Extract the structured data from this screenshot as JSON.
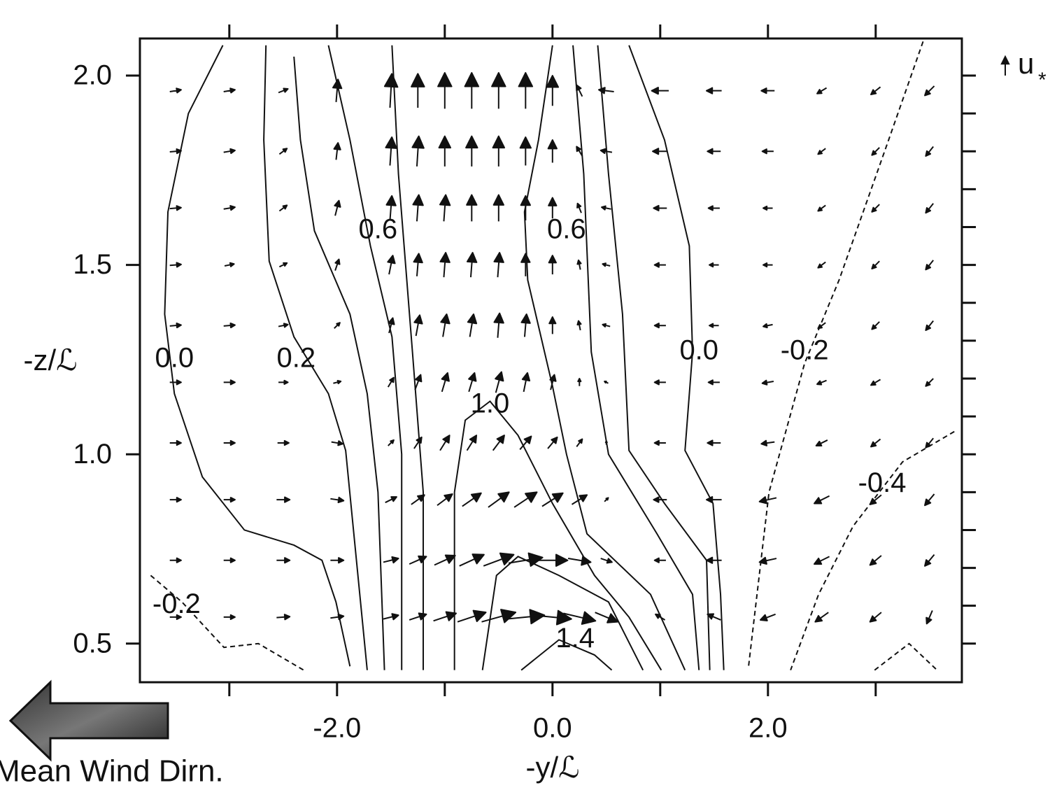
{
  "chart_data": {
    "type": "contour",
    "x_label": "-y/ℒ",
    "y_label": "-z/ℒ",
    "annotation": "Mean Wind Dirn.",
    "xlim": [
      -3.83,
      3.8
    ],
    "ylim": [
      0.398,
      2.098
    ],
    "xticks": [
      {
        "value": -2,
        "label": "-2.0"
      },
      {
        "value": 0,
        "label": "0.0"
      },
      {
        "value": 2,
        "label": "2.0"
      }
    ],
    "xminor_ticks": [
      -3,
      -1,
      1,
      3
    ],
    "yticks": [
      0.5,
      {
        "value": 1,
        "label": "1.0"
      },
      1.5,
      {
        "value": 2,
        "label": "2.0"
      }
    ],
    "yminor_ticks": [
      0.6,
      0.7,
      0.8,
      0.9,
      1.1,
      1.2,
      1.3,
      1.4,
      1.6,
      1.7,
      1.8,
      1.9
    ],
    "grid": false,
    "color": "#111111",
    "contours": [
      {
        "level": -0.2,
        "label": "-0.2",
        "label_x": -3.49,
        "label_y": 0.6,
        "x": [
          -3.73,
          -3.44,
          -3.05,
          -2.73,
          -2.31
        ],
        "y": [
          0.68,
          0.61,
          0.49,
          0.5,
          0.43
        ]
      },
      {
        "level": 0,
        "label": "0.0",
        "label_x": -3.51,
        "label_y": 1.25,
        "x": [
          -3.06,
          -3.38,
          -3.57,
          -3.6,
          -3.51,
          -3.25,
          -2.86,
          -2.4,
          -2.14,
          -2.01,
          -1.88
        ],
        "y": [
          2.08,
          1.9,
          1.64,
          1.37,
          1.16,
          0.94,
          0.8,
          0.76,
          0.72,
          0.61,
          0.44
        ]
      },
      {
        "level": 0.2,
        "label": "0.2",
        "label_x": -2.38,
        "label_y": 1.25,
        "x": [
          -2.66,
          -2.68,
          -2.63,
          -2.4,
          -2.08,
          -1.92,
          -1.82,
          -1.72
        ],
        "y": [
          2.08,
          1.83,
          1.51,
          1.31,
          1.16,
          1.01,
          0.72,
          0.43
        ]
      },
      {
        "level": 0.4,
        "x": [
          -2.4,
          -2.34,
          -2.21,
          -1.88,
          -1.72,
          -1.62,
          -1.56
        ],
        "y": [
          2.05,
          1.83,
          1.59,
          1.37,
          1.16,
          0.9,
          0.43
        ]
      },
      {
        "level": 0.6,
        "label": "0.6",
        "label_x": -1.62,
        "label_y": 1.59,
        "x": [
          -2.08,
          -1.88,
          -1.69,
          -1.49,
          -1.4,
          -1.4
        ],
        "y": [
          2.08,
          1.83,
          1.55,
          1.31,
          1.0,
          0.43
        ]
      },
      {
        "level": 0.8,
        "x": [
          -1.49,
          -1.43,
          -1.3,
          -1.2,
          -1.2
        ],
        "y": [
          2.08,
          1.74,
          1.27,
          0.9,
          0.43
        ]
      },
      {
        "level": 1,
        "label": "1.0",
        "label_x": -0.58,
        "label_y": 1.13,
        "x": [
          -0.91,
          -0.91,
          -0.81,
          -0.58,
          -0.32,
          0,
          0.39,
          0.71,
          1.01
        ],
        "y": [
          0.43,
          0.9,
          1.09,
          1.14,
          1.05,
          0.87,
          0.68,
          0.57,
          0.43
        ]
      },
      {
        "level": 1.2,
        "x": [
          -0.65,
          -0.52,
          -0.32,
          0.06,
          0.52,
          0.84
        ],
        "y": [
          0.43,
          0.68,
          0.73,
          0.68,
          0.61,
          0.43
        ]
      },
      {
        "level": 1.4,
        "label": "1.4",
        "label_x": 0.21,
        "label_y": 0.51,
        "x": [
          -0.29,
          0.06,
          0.39,
          0.55
        ],
        "y": [
          0.43,
          0.51,
          0.47,
          0.43
        ]
      },
      {
        "level": 0.6,
        "label": "0.6",
        "label_x": 0.13,
        "label_y": 1.59,
        "x": [
          0,
          -0.13,
          -0.26,
          -0.23,
          0,
          0.13,
          0.32,
          0.91,
          1.23
        ],
        "y": [
          2.08,
          1.83,
          1.64,
          1.46,
          1.18,
          1.0,
          0.79,
          0.63,
          0.43
        ]
      },
      {
        "level": 0.4,
        "x": [
          0.19,
          0.29,
          0.36,
          0.52,
          0.97,
          1.3,
          1.36
        ],
        "y": [
          2.08,
          1.74,
          1.27,
          1.0,
          0.79,
          0.63,
          0.43
        ]
      },
      {
        "level": 0.2,
        "x": [
          0.42,
          0.52,
          0.65,
          0.71,
          1.04,
          1.43,
          1.46
        ],
        "y": [
          2.08,
          1.74,
          1.37,
          1.01,
          0.87,
          0.72,
          0.43
        ]
      },
      {
        "level": 0,
        "label": "0.0",
        "label_x": 1.36,
        "label_y": 1.27,
        "x": [
          0.71,
          1.04,
          1.27,
          1.3,
          1.23,
          1.49,
          1.56,
          1.59
        ],
        "y": [
          2.08,
          1.83,
          1.55,
          1.27,
          1.01,
          0.87,
          0.63,
          0.43
        ]
      },
      {
        "level": -0.2,
        "label": "-0.2",
        "label_x": 2.34,
        "label_y": 1.27,
        "x": [
          3.44,
          3.12,
          2.66,
          2.34,
          2.01,
          1.82
        ],
        "y": [
          2.09,
          1.83,
          1.46,
          1.24,
          0.9,
          0.44
        ]
      },
      {
        "level": -0.4,
        "label": "-0.4",
        "label_x": 3.06,
        "label_y": 0.92,
        "x": [
          3.73,
          3.25,
          2.79,
          2.47,
          2.21
        ],
        "y": [
          1.06,
          0.98,
          0.81,
          0.63,
          0.43
        ]
      },
      {
        "level": -0.6,
        "x": [
          2.99,
          3.31,
          3.57
        ],
        "y": [
          0.43,
          0.5,
          0.43
        ]
      }
    ],
    "vectors": {
      "reference": {
        "value": 1,
        "label": "u",
        "subscript": "*"
      },
      "x": [
        -3.5,
        -3,
        -2.5,
        -2,
        -1.5,
        -1.25,
        -1,
        -0.75,
        -0.5,
        -0.25,
        0,
        0.25,
        0.5,
        1,
        1.5,
        2,
        2.5,
        3,
        3.5
      ],
      "y": [
        1.96,
        1.8,
        1.65,
        1.5,
        1.34,
        1.19,
        1.03,
        0.88,
        0.72,
        0.57
      ],
      "u": [
        [
          0.6,
          0.6,
          0.5,
          0.1,
          0.1,
          0,
          0,
          0,
          0,
          0,
          0,
          -0.3,
          -0.8,
          -0.9,
          -0.8,
          -0.7,
          -0.5,
          -0.5,
          -0.5
        ],
        [
          0.6,
          0.6,
          0.4,
          0.1,
          0.1,
          0.1,
          0,
          0,
          0,
          0,
          0,
          -0.3,
          -0.6,
          -0.8,
          -0.7,
          -0.6,
          -0.4,
          -0.4,
          -0.4
        ],
        [
          0.6,
          0.6,
          0.4,
          0.2,
          0.1,
          0.1,
          0.1,
          0,
          0,
          0,
          0,
          -0.2,
          -0.5,
          -0.7,
          -0.6,
          -0.5,
          -0.4,
          -0.4,
          -0.4
        ],
        [
          0.6,
          0.5,
          0.4,
          0.2,
          0.2,
          0.1,
          0.1,
          0.1,
          0.1,
          0,
          0,
          -0.1,
          -0.4,
          -0.6,
          -0.5,
          -0.5,
          -0.4,
          -0.4,
          -0.4
        ],
        [
          0.6,
          0.6,
          0.5,
          0.3,
          0.2,
          0.2,
          0.2,
          0.2,
          0.1,
          0.1,
          0,
          -0.1,
          -0.4,
          -0.6,
          -0.5,
          -0.5,
          -0.4,
          -0.4,
          -0.4
        ],
        [
          0.6,
          0.6,
          0.5,
          0.4,
          0.3,
          0.3,
          0.3,
          0.3,
          0.3,
          0.2,
          0.2,
          0,
          -0.2,
          -0.6,
          -0.6,
          -0.6,
          -0.5,
          -0.5,
          -0.4
        ],
        [
          0.6,
          0.6,
          0.6,
          0.6,
          0.3,
          0.4,
          0.5,
          0.5,
          0.6,
          0.6,
          0.5,
          0.3,
          0,
          -0.6,
          -0.7,
          -0.7,
          -0.6,
          -0.5,
          -0.4
        ],
        [
          0.6,
          0.6,
          0.7,
          0.7,
          0.6,
          0.7,
          0.8,
          1,
          1.1,
          1.2,
          1.1,
          0.8,
          0.2,
          -0.7,
          -0.8,
          -0.9,
          -0.8,
          -0.6,
          -0.5
        ],
        [
          0.6,
          0.6,
          0.7,
          0.7,
          0.8,
          0.9,
          1.1,
          1.3,
          1.6,
          1.8,
          1.6,
          1.2,
          0.6,
          -0.6,
          -0.8,
          -0.9,
          -0.8,
          -0.6,
          -0.5
        ],
        [
          0.6,
          0.6,
          0.7,
          0.7,
          0.8,
          0.9,
          1.2,
          1.5,
          1.8,
          2,
          2,
          1.7,
          1.2,
          -0.5,
          -0.7,
          -0.8,
          -0.7,
          -0.6,
          -0.3
        ]
      ],
      "v": [
        [
          0.1,
          0.1,
          0.2,
          1.2,
          1.8,
          1.8,
          1.9,
          1.9,
          1.9,
          1.9,
          1.6,
          0.6,
          0.1,
          0,
          0,
          0,
          -0.3,
          -0.4,
          -0.5
        ],
        [
          0.05,
          0.1,
          0.3,
          0.9,
          1.5,
          1.6,
          1.6,
          1.6,
          1.6,
          1.5,
          1.2,
          0.5,
          0.1,
          0,
          0,
          0,
          -0.3,
          -0.4,
          -0.5
        ],
        [
          0.05,
          0.1,
          0.3,
          0.8,
          1.3,
          1.4,
          1.4,
          1.4,
          1.4,
          1.3,
          1.1,
          0.5,
          0.1,
          0,
          0,
          0,
          -0.3,
          -0.4,
          -0.5
        ],
        [
          0.05,
          0.1,
          0.2,
          0.6,
          1,
          1.2,
          1.3,
          1.3,
          1.3,
          1.2,
          1,
          0.5,
          0.1,
          0,
          0,
          0,
          -0.3,
          -0.4,
          -0.5
        ],
        [
          0.05,
          0.05,
          0.1,
          0.3,
          0.8,
          1.1,
          1.2,
          1.2,
          1.3,
          1.2,
          0.9,
          0.5,
          0.1,
          0,
          0,
          -0.1,
          -0.3,
          -0.4,
          -0.5
        ],
        [
          0,
          0,
          0,
          0.1,
          0.5,
          0.8,
          1,
          1,
          1.1,
          1,
          0.8,
          0.4,
          0.1,
          0,
          0,
          -0.1,
          -0.2,
          -0.3,
          -0.4
        ],
        [
          0,
          0,
          0,
          -0.1,
          0.3,
          0.6,
          0.8,
          0.8,
          0.8,
          0.7,
          0.6,
          0.4,
          0.2,
          0,
          0,
          -0.1,
          -0.3,
          -0.4,
          -0.5
        ],
        [
          0,
          0,
          0,
          -0.1,
          0.3,
          0.5,
          0.6,
          0.7,
          0.8,
          0.8,
          0.7,
          0.5,
          0.2,
          0,
          0,
          -0.2,
          -0.4,
          -0.5,
          -0.6
        ],
        [
          0,
          0,
          0,
          0,
          0.2,
          0.4,
          0.5,
          0.6,
          0.6,
          0.3,
          0,
          -0.2,
          -0.2,
          0,
          0,
          -0.2,
          -0.4,
          -0.5,
          -0.6
        ],
        [
          0,
          0,
          0.05,
          0.1,
          0.2,
          0.3,
          0.4,
          0.5,
          0.5,
          0.2,
          -0.2,
          -0.4,
          -0.5,
          0.3,
          0.3,
          -0.3,
          -0.5,
          -0.5,
          -0.7
        ]
      ]
    }
  }
}
